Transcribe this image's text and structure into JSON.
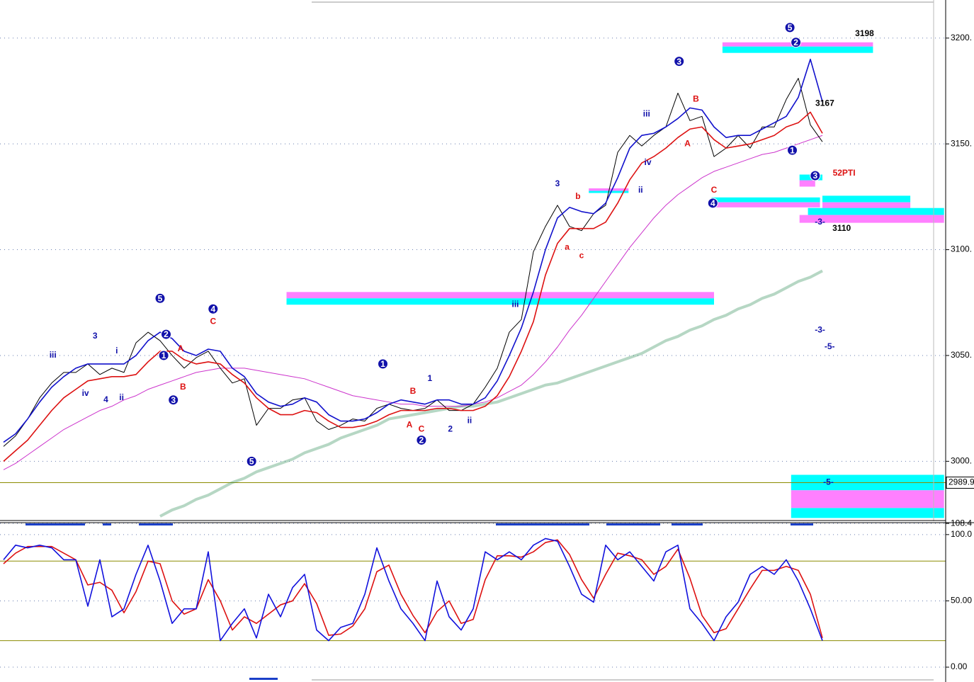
{
  "chart_data": [
    {
      "type": "line",
      "ylim": [
        2972,
        3218
      ],
      "yticks": [
        {
          "value": 3200,
          "label": "3200."
        },
        {
          "value": 3150,
          "label": "3150."
        },
        {
          "value": 3100,
          "label": "3100."
        },
        {
          "value": 3050,
          "label": "3050."
        },
        {
          "value": 3000,
          "label": "3000."
        }
      ],
      "grid": true,
      "series": [
        {
          "color": "#2e8b57",
          "values": [
            null,
            null,
            null,
            null,
            null,
            null,
            null,
            null,
            null,
            null,
            null,
            null,
            null,
            2974,
            2977,
            2979,
            2982,
            2984,
            2987,
            2990,
            2992,
            2995,
            2997,
            2999,
            3001,
            3004,
            3006,
            3008,
            3011,
            3013,
            3015,
            3017,
            3020,
            3021,
            3022,
            3023,
            3024,
            3025,
            3026,
            3026,
            3027,
            3028,
            3030,
            3032,
            3034,
            3036,
            3037,
            3039,
            3041,
            3043,
            3045,
            3047,
            3049,
            3051,
            3054,
            3057,
            3059,
            3062,
            3064,
            3067,
            3069,
            3072,
            3074,
            3077,
            3079,
            3082,
            3085,
            3087,
            3090
          ]
        },
        {
          "color": "#cc33cc",
          "values": [
            2996,
            2999,
            3003,
            3007,
            3011,
            3015,
            3018,
            3021,
            3024,
            3026,
            3029,
            3031,
            3034,
            3036,
            3038,
            3040,
            3042,
            3043,
            3044,
            3044,
            3044,
            3043,
            3042,
            3041,
            3040,
            3039,
            3037,
            3035,
            3033,
            3031,
            3030,
            3029,
            3028,
            3027,
            3027,
            3026,
            3026,
            3026,
            3026,
            3027,
            3028,
            3030,
            3033,
            3036,
            3041,
            3047,
            3054,
            3062,
            3069,
            3077,
            3085,
            3093,
            3101,
            3108,
            3115,
            3121,
            3126,
            3130,
            3134,
            3137,
            3139,
            3141,
            3143,
            3145,
            3146,
            3148,
            3150,
            3152,
            3154
          ]
        },
        {
          "color": "#000000",
          "values": [
            3007,
            3012,
            3020,
            3030,
            3037,
            3042,
            3042,
            3046,
            3041,
            3044,
            3042,
            3056,
            3061,
            3057,
            3050,
            3044,
            3049,
            3052,
            3044,
            3037,
            3039,
            3017,
            3025,
            3025,
            3029,
            3030,
            3019,
            3015,
            3017,
            3020,
            3019,
            3025,
            3027,
            3025,
            3024,
            3025,
            3029,
            3024,
            3024,
            3027,
            3035,
            3044,
            3061,
            3067,
            3099,
            3111,
            3121,
            3111,
            3109,
            3117,
            3121,
            3146,
            3154,
            3149,
            3154,
            3158,
            3174,
            3161,
            3163,
            3144,
            3148,
            3154,
            3148,
            3158,
            3158,
            3171,
            3181,
            3159,
            3151
          ]
        },
        {
          "color": "#dd1111",
          "values": [
            3000,
            3005,
            3010,
            3017,
            3024,
            3030,
            3034,
            3038,
            3039,
            3040,
            3040,
            3041,
            3047,
            3052,
            3052,
            3048,
            3046,
            3047,
            3046,
            3041,
            3037,
            3030,
            3025,
            3022,
            3022,
            3024,
            3023,
            3019,
            3016,
            3016,
            3017,
            3019,
            3022,
            3024,
            3024,
            3024,
            3025,
            3025,
            3024,
            3024,
            3026,
            3031,
            3040,
            3052,
            3066,
            3088,
            3103,
            3110,
            3110,
            3110,
            3113,
            3122,
            3133,
            3141,
            3144,
            3148,
            3153,
            3157,
            3158,
            3152,
            3148,
            3149,
            3150,
            3152,
            3154,
            3158,
            3160,
            3165,
            3155
          ]
        },
        {
          "color": "#1111cc",
          "values": [
            3009,
            3013,
            3020,
            3028,
            3035,
            3040,
            3044,
            3046,
            3046,
            3046,
            3046,
            3050,
            3057,
            3061,
            3058,
            3052,
            3050,
            3053,
            3052,
            3044,
            3040,
            3032,
            3028,
            3026,
            3027,
            3030,
            3028,
            3022,
            3019,
            3019,
            3020,
            3023,
            3027,
            3029,
            3028,
            3027,
            3029,
            3029,
            3027,
            3027,
            3030,
            3038,
            3050,
            3063,
            3080,
            3100,
            3115,
            3120,
            3118,
            3117,
            3122,
            3134,
            3148,
            3154,
            3155,
            3158,
            3162,
            3167,
            3166,
            3158,
            3153,
            3154,
            3154,
            3157,
            3160,
            3163,
            3172,
            3190,
            3170
          ]
        }
      ],
      "zones": [
        {
          "from": 23.5,
          "to": 59,
          "top": 3080,
          "bottom": 3077,
          "color": "#ff80ff"
        },
        {
          "from": 23.5,
          "to": 59,
          "top": 3077,
          "bottom": 3074,
          "color": "#00ffff"
        },
        {
          "from": 59.7,
          "to": 72.2,
          "top": 3198,
          "bottom": 3196,
          "color": "#ff80ff"
        },
        {
          "from": 59.7,
          "to": 72.2,
          "top": 3196,
          "bottom": 3193,
          "color": "#00ffff"
        },
        {
          "from": 65.4,
          "to": 78.1,
          "top": 2993.6,
          "bottom": 2986.3,
          "color": "#00ffff"
        },
        {
          "from": 65.4,
          "to": 78.1,
          "top": 2986.3,
          "bottom": 2977.9,
          "color": "#ff80ff"
        },
        {
          "from": 65.4,
          "to": 78.1,
          "top": 2977.9,
          "bottom": 2973.2,
          "color": "#00ffff"
        },
        {
          "from": 58.8,
          "to": 67.8,
          "top": 3124.7,
          "bottom": 3122.4,
          "color": "#00ffff"
        },
        {
          "from": 58.8,
          "to": 67.8,
          "top": 3122.4,
          "bottom": 3120,
          "color": "#ff80ff"
        },
        {
          "from": 68,
          "to": 75.3,
          "top": 3125.5,
          "bottom": 3122.4,
          "color": "#00ffff"
        },
        {
          "from": 68,
          "to": 75.3,
          "top": 3122.4,
          "bottom": 3119.1,
          "color": "#ff80ff"
        },
        {
          "from": 66.8,
          "to": 78.1,
          "top": 3119.7,
          "bottom": 3116.4,
          "color": "#00ffff"
        },
        {
          "from": 66.1,
          "to": 78.1,
          "top": 3116.4,
          "bottom": 3112.7,
          "color": "#ff80ff"
        },
        {
          "from": 66.1,
          "to": 68,
          "top": 3135.5,
          "bottom": 3132.8,
          "color": "#00ffff"
        },
        {
          "from": 66.1,
          "to": 67.4,
          "top": 3132.8,
          "bottom": 3129.8,
          "color": "#ff80ff"
        },
        {
          "from": 48.6,
          "to": 51.9,
          "top": 3129,
          "bottom": 3127.8,
          "color": "#ff80ff"
        },
        {
          "from": 48.6,
          "to": 51.9,
          "top": 3127.8,
          "bottom": 3126.8,
          "color": "#00ffff"
        }
      ],
      "marker": {
        "value": 2989.9,
        "label": "2989.9",
        "color": "#8b8b00"
      },
      "annotations": [
        {
          "text": "5",
          "bar": 13,
          "price": 3077,
          "color": "#1111aa",
          "circled": true
        },
        {
          "text": "2",
          "bar": 13.5,
          "price": 3060,
          "color": "#1111aa",
          "circled": true
        },
        {
          "text": "1",
          "bar": 13.3,
          "price": 3050,
          "color": "#1111aa",
          "circled": true
        },
        {
          "text": "3",
          "bar": 14.1,
          "price": 3029,
          "color": "#1111aa",
          "circled": true
        },
        {
          "text": "4",
          "bar": 17.4,
          "price": 3072,
          "color": "#1111aa",
          "circled": true
        },
        {
          "text": "C",
          "bar": 17.4,
          "price": 3066,
          "color": "#dd1111",
          "circled": false
        },
        {
          "text": "5",
          "bar": 20.6,
          "price": 3000,
          "color": "#1111aa",
          "circled": true
        },
        {
          "text": "1",
          "bar": 31.5,
          "price": 3046,
          "color": "#1111aa",
          "circled": true
        },
        {
          "text": "2",
          "bar": 34.7,
          "price": 3010,
          "color": "#1111aa",
          "circled": true
        },
        {
          "text": "B",
          "bar": 34,
          "price": 3033,
          "color": "#dd1111",
          "circled": false
        },
        {
          "text": "A",
          "bar": 33.7,
          "price": 3017,
          "color": "#dd1111",
          "circled": false
        },
        {
          "text": "C",
          "bar": 34.7,
          "price": 3015,
          "color": "#dd1111",
          "circled": false
        },
        {
          "text": "1",
          "bar": 35.4,
          "price": 3039,
          "color": "#1111aa",
          "circled": false
        },
        {
          "text": "2",
          "bar": 37.1,
          "price": 3015,
          "color": "#1111aa",
          "circled": false
        },
        {
          "text": "ii",
          "bar": 38.7,
          "price": 3019,
          "color": "#1111aa",
          "circled": false
        },
        {
          "text": "iii",
          "bar": 42.5,
          "price": 3074,
          "color": "#1111aa",
          "circled": false
        },
        {
          "text": "3",
          "bar": 46,
          "price": 3131,
          "color": "#1111aa",
          "circled": false
        },
        {
          "text": "b",
          "bar": 47.7,
          "price": 3125,
          "color": "#dd1111",
          "circled": false
        },
        {
          "text": "a",
          "bar": 46.8,
          "price": 3101,
          "color": "#dd1111",
          "circled": false
        },
        {
          "text": "c",
          "bar": 48,
          "price": 3097,
          "color": "#dd1111",
          "circled": false
        },
        {
          "text": "ii",
          "bar": 52.9,
          "price": 3128,
          "color": "#1111aa",
          "circled": false
        },
        {
          "text": "iii",
          "bar": 53.4,
          "price": 3164,
          "color": "#1111aa",
          "circled": false
        },
        {
          "text": "iv",
          "bar": 53.5,
          "price": 3141,
          "color": "#1111aa",
          "circled": false
        },
        {
          "text": "3",
          "bar": 56.1,
          "price": 3189,
          "color": "#1111aa",
          "circled": true
        },
        {
          "text": "B",
          "bar": 57.5,
          "price": 3171,
          "color": "#dd1111",
          "circled": false
        },
        {
          "text": "A",
          "bar": 56.8,
          "price": 3150,
          "color": "#dd1111",
          "circled": false
        },
        {
          "text": "C",
          "bar": 59,
          "price": 3128,
          "color": "#dd1111",
          "circled": false
        },
        {
          "text": "4",
          "bar": 58.9,
          "price": 3122,
          "color": "#1111aa",
          "circled": true
        },
        {
          "text": "5",
          "bar": 65.3,
          "price": 3205,
          "color": "#1111aa",
          "circled": true
        },
        {
          "text": "2",
          "bar": 65.8,
          "price": 3198,
          "color": "#1111aa",
          "circled": true
        },
        {
          "text": "1",
          "bar": 65.5,
          "price": 3147,
          "color": "#1111aa",
          "circled": true
        },
        {
          "text": "3",
          "bar": 67.4,
          "price": 3135,
          "color": "#1111aa",
          "circled": true
        },
        {
          "text": "3198",
          "bar": 71.5,
          "price": 3202,
          "color": "#000000",
          "circled": false
        },
        {
          "text": "3167",
          "bar": 68.2,
          "price": 3169,
          "color": "#000000",
          "circled": false
        },
        {
          "text": "52PTI",
          "bar": 69.8,
          "price": 3136,
          "color": "#dd1111",
          "circled": false
        },
        {
          "text": "3110",
          "bar": 69.6,
          "price": 3110,
          "color": "#000000",
          "circled": false
        },
        {
          "text": "-3-",
          "bar": 67.8,
          "price": 3113,
          "color": "#1111aa",
          "circled": false
        },
        {
          "text": "-3-",
          "bar": 67.8,
          "price": 3062,
          "color": "#1111aa",
          "circled": false
        },
        {
          "text": "-5-",
          "bar": 68.6,
          "price": 3054,
          "color": "#1111aa",
          "circled": false
        },
        {
          "text": "-5-",
          "bar": 68.5,
          "price": 2990,
          "color": "#1111aa",
          "circled": false
        },
        {
          "text": "iii",
          "bar": 4.1,
          "price": 3050,
          "color": "#1111aa",
          "circled": false
        },
        {
          "text": "iv",
          "bar": 6.8,
          "price": 3032,
          "color": "#1111aa",
          "circled": false
        },
        {
          "text": "3",
          "bar": 7.6,
          "price": 3059,
          "color": "#1111aa",
          "circled": false
        },
        {
          "text": "4",
          "bar": 8.5,
          "price": 3029,
          "color": "#1111aa",
          "circled": false
        },
        {
          "text": "i",
          "bar": 9.4,
          "price": 3052,
          "color": "#1111aa",
          "circled": false
        },
        {
          "text": "ii",
          "bar": 9.8,
          "price": 3030,
          "color": "#1111aa",
          "circled": false
        },
        {
          "text": "A",
          "bar": 14.7,
          "price": 3053,
          "color": "#dd1111",
          "circled": false
        },
        {
          "text": "B",
          "bar": 14.9,
          "price": 3035,
          "color": "#dd1111",
          "circled": false
        }
      ]
    },
    {
      "type": "line",
      "ylim": [
        -9.6,
        109
      ],
      "yticks": [
        {
          "value": 108.4,
          "label": "108.4"
        },
        {
          "value": 100,
          "label": "100.0"
        },
        {
          "value": 50,
          "label": "50.00"
        },
        {
          "value": 0,
          "label": "0.00"
        }
      ],
      "grid": true,
      "levels": [
        80,
        20
      ],
      "level_color": "#8b8b00",
      "series": [
        {
          "color": "#dd1111",
          "values": [
            78,
            86,
            91,
            91,
            91,
            86,
            81,
            62,
            64,
            58,
            41,
            57,
            80,
            78,
            50,
            40,
            44,
            66,
            50,
            28,
            38,
            33,
            40,
            47,
            50,
            63,
            48,
            24,
            25,
            31,
            44,
            72,
            77,
            55,
            39,
            26,
            42,
            50,
            33,
            36,
            66,
            84,
            84,
            83,
            87,
            94,
            96,
            85,
            66,
            52,
            70,
            86,
            84,
            81,
            70,
            76,
            89,
            67,
            39,
            26,
            29,
            44,
            59,
            73,
            73,
            76,
            73,
            55,
            22
          ]
        },
        {
          "color": "#1111dd",
          "values": [
            81,
            92,
            90,
            92,
            90,
            81,
            81,
            46,
            81,
            38,
            44,
            70,
            92,
            65,
            33,
            44,
            44,
            87,
            20,
            33,
            44,
            22,
            55,
            38,
            60,
            70,
            28,
            20,
            30,
            33,
            55,
            90,
            65,
            44,
            33,
            20,
            65,
            38,
            28,
            44,
            87,
            81,
            87,
            81,
            92,
            97,
            95,
            76,
            55,
            49,
            92,
            81,
            87,
            76,
            65,
            87,
            92,
            44,
            33,
            20,
            38,
            49,
            70,
            76,
            70,
            81,
            65,
            44,
            20
          ]
        }
      ]
    }
  ]
}
